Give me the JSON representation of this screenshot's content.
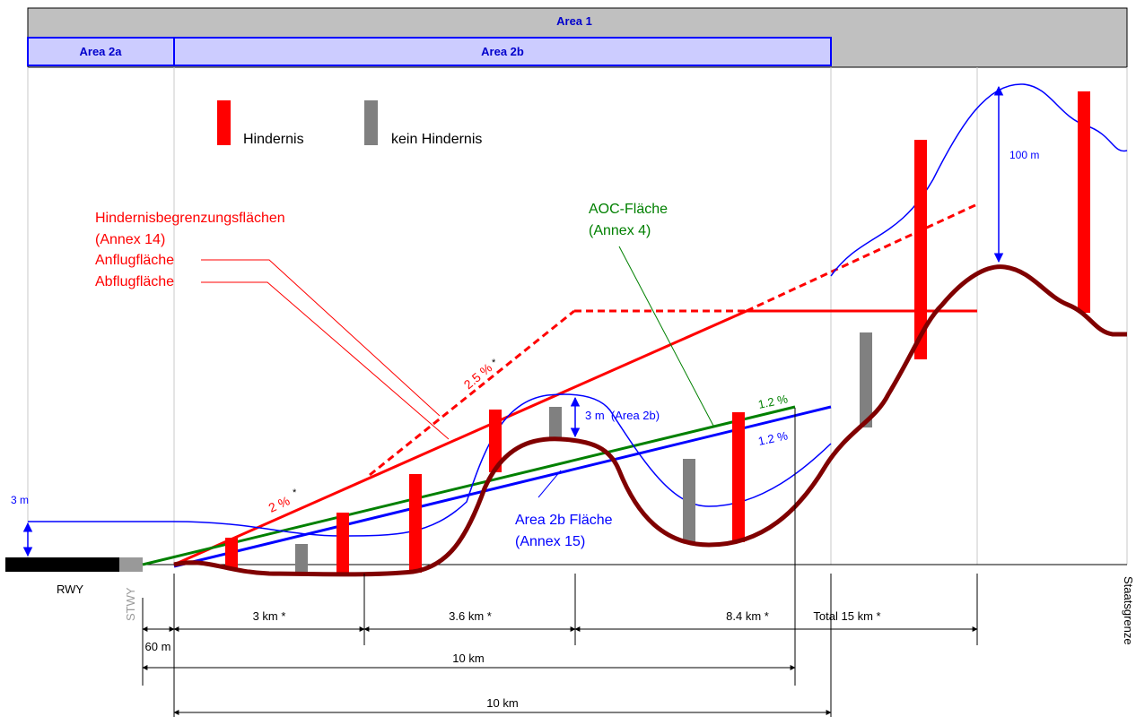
{
  "header": {
    "area1": "Area 1",
    "area2a": "Area 2a",
    "area2b": "Area 2b"
  },
  "legend": {
    "obstacle": "Hindernis",
    "no_obstacle": "kein Hindernis"
  },
  "labels": {
    "obstacle_surfaces_line1": "Hindernisbegrenzungsflächen",
    "obstacle_surfaces_line2": "(Annex 14)",
    "approach_surface": "Anflugfläche",
    "takeoff_surface": "Abflugfläche",
    "aoc_line1": "AOC-Fläche",
    "aoc_line2": "(Annex 4)",
    "area2b_surface_line1": "Area 2b Fläche",
    "area2b_surface_line2": "(Annex 15)",
    "slope_2_5": "2.5 %",
    "slope_2": "2 %",
    "star": "*",
    "slope_green": "1.2 %",
    "slope_blue": "1.2 %",
    "height_3m_area2b": "3 m  (Area 2b)",
    "height_3m_left": "3 m",
    "height_100m": "100 m",
    "rwy": "RWY",
    "stwy": "STWY",
    "border": "Staatsgrenze"
  },
  "dimensions": {
    "d60m": "60 m",
    "d3km": "3 km *",
    "d3_6km": "3.6 km *",
    "d8_4km": "8.4 km *",
    "total15": "Total 15 km *",
    "d10km_upper": "10 km",
    "d10km_lower": "10 km"
  },
  "colors": {
    "area_header_gray": "#c0c0c0",
    "area2_fill": "#ccccff",
    "area2_border": "#0000ff",
    "obstacle_red": "#ff0000",
    "non_obstacle_gray": "#808080",
    "terrain": "#800000",
    "aoc_green": "#008000",
    "area2b_blue": "#0000ff"
  }
}
